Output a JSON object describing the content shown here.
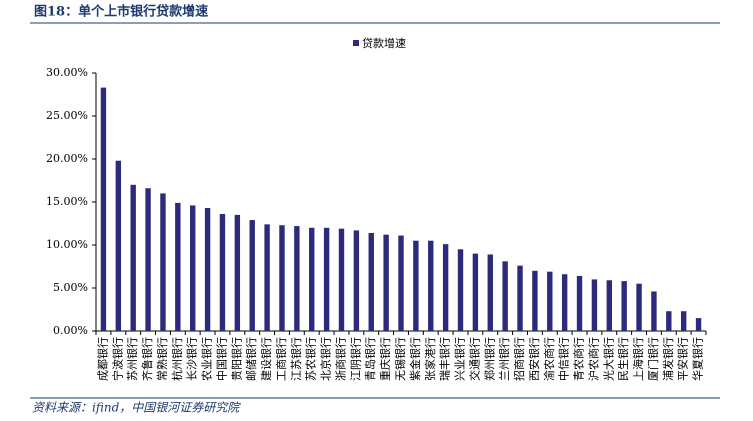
{
  "chart_data": {
    "type": "bar",
    "title": "图18：单个上市银行贷款增速",
    "source": "资料来源：ifind，中国银河证券研究院",
    "categories": [
      "成都银行",
      "宁波银行",
      "苏州银行",
      "齐鲁银行",
      "常熟银行",
      "杭州银行",
      "长沙银行",
      "农业银行",
      "中国银行",
      "贵阳银行",
      "邮储银行",
      "建设银行",
      "工商银行",
      "江苏银行",
      "苏农银行",
      "北京银行",
      "浙商银行",
      "江阴银行",
      "青岛银行",
      "重庆银行",
      "无锡银行",
      "紫金银行",
      "张家港行",
      "瑞丰银行",
      "兴业银行",
      "交通银行",
      "郑州银行",
      "兰州银行",
      "招商银行",
      "西安银行",
      "渝农商行",
      "中信银行",
      "青农商行",
      "沪农商行",
      "光大银行",
      "民生银行",
      "上海银行",
      "厦门银行",
      "浦发银行",
      "平安银行",
      "华夏银行"
    ],
    "series": [
      {
        "name": "贷款增速",
        "color": "#2d2a7c",
        "values": [
          28.3,
          19.8,
          17.0,
          16.6,
          16.0,
          14.9,
          14.6,
          14.3,
          13.6,
          13.5,
          12.9,
          12.4,
          12.3,
          12.2,
          12.0,
          12.0,
          11.9,
          11.7,
          11.4,
          11.2,
          11.1,
          10.5,
          10.5,
          10.1,
          9.5,
          9.0,
          8.9,
          8.1,
          7.6,
          7.0,
          6.9,
          6.6,
          6.4,
          6.0,
          5.9,
          5.8,
          5.5,
          4.6,
          2.3,
          2.3,
          1.5
        ]
      }
    ],
    "ylim": [
      0,
      30
    ],
    "yticks": [
      {
        "value": 0,
        "label": "0.00%"
      },
      {
        "value": 5,
        "label": "5.00%"
      },
      {
        "value": 10,
        "label": "10.00%"
      },
      {
        "value": 15,
        "label": "15.00%"
      },
      {
        "value": 20,
        "label": "20.00%"
      },
      {
        "value": 25,
        "label": "25.00%"
      },
      {
        "value": 30,
        "label": "30.00%"
      }
    ],
    "legend": "top"
  }
}
